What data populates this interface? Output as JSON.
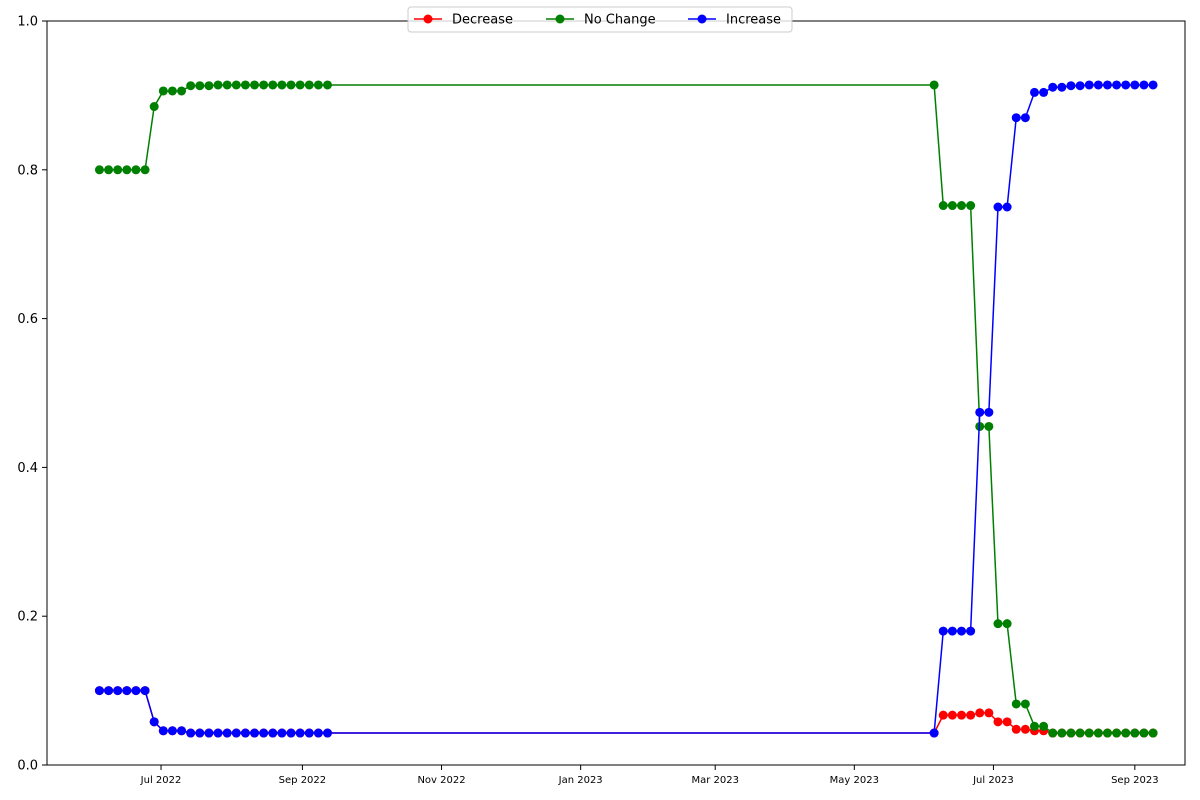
{
  "chart_data": {
    "type": "line",
    "title": "",
    "xlabel": "",
    "ylabel": "",
    "ylim": [
      0,
      1
    ],
    "xlim": [
      "2022-05-12",
      "2023-09-23"
    ],
    "grid": false,
    "legend": {
      "placement": "top-center",
      "columns": 3
    },
    "x_ticks": [
      {
        "date": "2022-07-01",
        "label": "Jul 2022"
      },
      {
        "date": "2022-09-01",
        "label": "Sep 2022"
      },
      {
        "date": "2022-11-01",
        "label": "Nov 2022"
      },
      {
        "date": "2023-01-01",
        "label": "Jan 2023"
      },
      {
        "date": "2023-03-01",
        "label": "Mar 2023"
      },
      {
        "date": "2023-05-01",
        "label": "May 2023"
      },
      {
        "date": "2023-07-01",
        "label": "Jul 2023"
      },
      {
        "date": "2023-09-01",
        "label": "Sep 2023"
      }
    ],
    "y_ticks": [
      {
        "value": 0.0,
        "label": "0.0"
      },
      {
        "value": 0.2,
        "label": "0.2"
      },
      {
        "value": 0.4,
        "label": "0.4"
      },
      {
        "value": 0.6,
        "label": "0.6"
      },
      {
        "value": 0.8,
        "label": "0.8"
      },
      {
        "value": 1.0,
        "label": "1.0"
      }
    ],
    "x": [
      "2022-06-04",
      "2022-06-08",
      "2022-06-12",
      "2022-06-16",
      "2022-06-20",
      "2022-06-24",
      "2022-06-28",
      "2022-07-02",
      "2022-07-06",
      "2022-07-10",
      "2022-07-14",
      "2022-07-18",
      "2022-07-22",
      "2022-07-26",
      "2022-07-30",
      "2022-08-03",
      "2022-08-07",
      "2022-08-11",
      "2022-08-15",
      "2022-08-19",
      "2022-08-23",
      "2022-08-27",
      "2022-08-31",
      "2022-09-04",
      "2022-09-08",
      "2022-09-12",
      "2023-06-05",
      "2023-06-09",
      "2023-06-13",
      "2023-06-17",
      "2023-06-21",
      "2023-06-25",
      "2023-06-29",
      "2023-07-03",
      "2023-07-07",
      "2023-07-11",
      "2023-07-15",
      "2023-07-19",
      "2023-07-23",
      "2023-07-27",
      "2023-07-31",
      "2023-08-04",
      "2023-08-08",
      "2023-08-12",
      "2023-08-16",
      "2023-08-20",
      "2023-08-24",
      "2023-08-28",
      "2023-09-01",
      "2023-09-05",
      "2023-09-09"
    ],
    "series": [
      {
        "name": "Decrease",
        "color": "#ff0000",
        "values": [
          0.1,
          0.1,
          0.1,
          0.1,
          0.1,
          0.1,
          0.058,
          0.046,
          0.046,
          0.046,
          0.043,
          0.043,
          0.043,
          0.043,
          0.043,
          0.043,
          0.043,
          0.043,
          0.043,
          0.043,
          0.043,
          0.043,
          0.043,
          0.043,
          0.043,
          0.043,
          0.043,
          0.067,
          0.067,
          0.067,
          0.067,
          0.07,
          0.07,
          0.058,
          0.058,
          0.048,
          0.048,
          0.046,
          0.046,
          0.043,
          0.043,
          0.043,
          0.043,
          0.043,
          0.043,
          0.043,
          0.043,
          0.043,
          0.043,
          0.043,
          0.043
        ]
      },
      {
        "name": "No Change",
        "color": "#008000",
        "values": [
          0.8,
          0.8,
          0.8,
          0.8,
          0.8,
          0.8,
          0.885,
          0.906,
          0.906,
          0.906,
          0.913,
          0.913,
          0.913,
          0.914,
          0.914,
          0.914,
          0.914,
          0.914,
          0.914,
          0.914,
          0.914,
          0.914,
          0.914,
          0.914,
          0.914,
          0.914,
          0.914,
          0.752,
          0.752,
          0.752,
          0.752,
          0.455,
          0.455,
          0.19,
          0.19,
          0.082,
          0.082,
          0.052,
          0.052,
          0.043,
          0.043,
          0.043,
          0.043,
          0.043,
          0.043,
          0.043,
          0.043,
          0.043,
          0.043,
          0.043,
          0.043
        ]
      },
      {
        "name": "Increase",
        "color": "#0000ff",
        "values": [
          0.1,
          0.1,
          0.1,
          0.1,
          0.1,
          0.1,
          0.058,
          0.046,
          0.046,
          0.046,
          0.043,
          0.043,
          0.043,
          0.043,
          0.043,
          0.043,
          0.043,
          0.043,
          0.043,
          0.043,
          0.043,
          0.043,
          0.043,
          0.043,
          0.043,
          0.043,
          0.043,
          0.18,
          0.18,
          0.18,
          0.18,
          0.474,
          0.474,
          0.75,
          0.75,
          0.87,
          0.87,
          0.904,
          0.904,
          0.911,
          0.911,
          0.913,
          0.913,
          0.914,
          0.914,
          0.914,
          0.914,
          0.914,
          0.914,
          0.914,
          0.914
        ]
      }
    ]
  }
}
